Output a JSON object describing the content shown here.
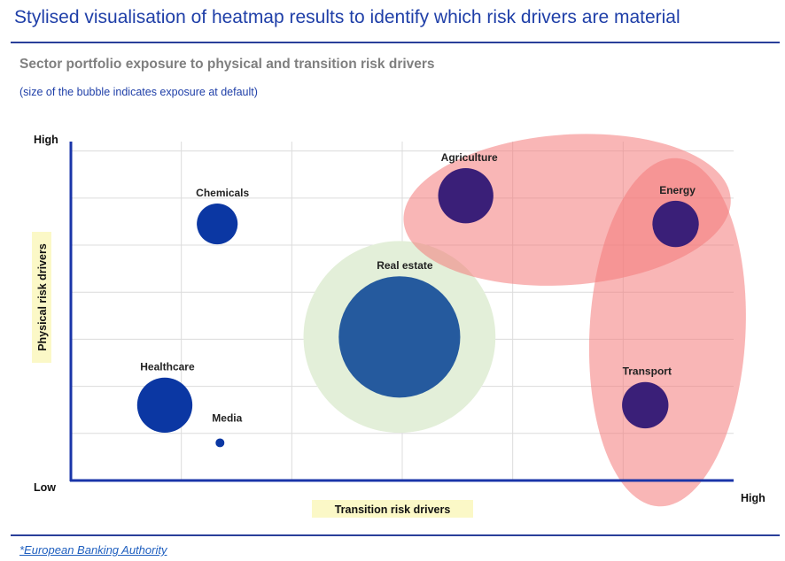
{
  "header": {
    "title": "Stylised visualisation of heatmap results to identify which risk drivers are material",
    "subtitle": "Sector portfolio exposure to physical and transition risk drivers",
    "note": "(size of the bubble indicates exposure at default)"
  },
  "footer": {
    "source": "*European Banking Authority"
  },
  "colors": {
    "bubble_blue": "#0b37a3",
    "bubble_purple": "#3a1f78",
    "real_estate_blue": "#255a9e",
    "halo_green": "#e3efd9",
    "cluster_red": "#f47a7a",
    "axis_blue": "#1a35a8",
    "axis_label_bg": "#fbf8c7"
  },
  "chart_data": {
    "type": "scatter",
    "title": "Sector portfolio exposure to physical and transition risk drivers",
    "xlabel": "Transition risk drivers",
    "ylabel": "Physical risk drivers",
    "x_tick_labels": {
      "low": "Low",
      "high": "High"
    },
    "y_tick_labels": {
      "low": "Low",
      "high": "High"
    },
    "xlim": [
      0,
      12
    ],
    "ylim": [
      0,
      7.2
    ],
    "grid": true,
    "size_meaning": "exposure at default",
    "points": [
      {
        "label": "Chemicals",
        "x": 2.65,
        "y": 5.45,
        "size": 0.37,
        "color": "bubble_blue"
      },
      {
        "label": "Healthcare",
        "x": 1.7,
        "y": 1.6,
        "size": 0.5,
        "color": "bubble_blue"
      },
      {
        "label": "Media",
        "x": 2.7,
        "y": 0.8,
        "size": 0.08,
        "color": "bubble_blue"
      },
      {
        "label": "Real estate",
        "x": 5.95,
        "y": 3.05,
        "size": 1.1,
        "color": "real_estate_blue"
      },
      {
        "label": "Agriculture",
        "x": 7.15,
        "y": 6.05,
        "size": 0.5,
        "color": "bubble_purple"
      },
      {
        "label": "Energy",
        "x": 10.95,
        "y": 5.45,
        "size": 0.42,
        "color": "bubble_purple"
      },
      {
        "label": "Transport",
        "x": 10.4,
        "y": 1.6,
        "size": 0.42,
        "color": "bubble_purple"
      }
    ],
    "highlight_regions": [
      {
        "encloses": "Real estate",
        "shape": "circle",
        "color": "halo_green"
      },
      {
        "encloses": [
          "Agriculture",
          "Energy"
        ],
        "shape": "ellipse",
        "color": "cluster_red"
      },
      {
        "encloses": [
          "Energy",
          "Transport"
        ],
        "shape": "ellipse",
        "color": "cluster_red"
      }
    ]
  }
}
